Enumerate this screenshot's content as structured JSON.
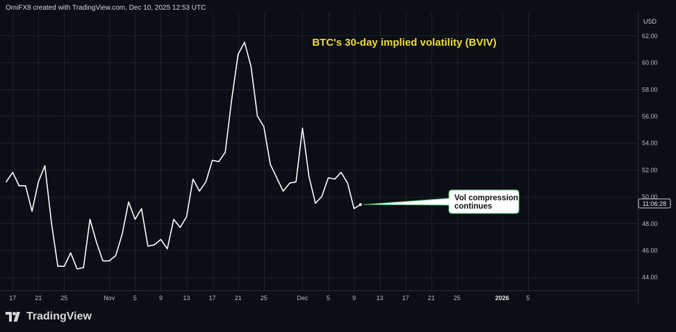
{
  "header": {
    "attribution": "OmiFX8 created with TradingView.com, Dec 10, 2025 12:53 UTC"
  },
  "footer": {
    "brand": "TradingView"
  },
  "colors": {
    "background": "#0b0e14",
    "line": "#ffffff",
    "title": "#f0d93a",
    "grid": "#1b2230",
    "axis_text": "#b8bcc4"
  },
  "chart_data": {
    "type": "line",
    "title": "BTC's 30-day implied volatility (BVIV)",
    "currency_label": "USD",
    "countdown_label": "11:06:28",
    "ylim": [
      43,
      63
    ],
    "yticks": [
      44,
      46,
      48,
      50,
      52,
      54,
      56,
      58,
      60,
      62
    ],
    "ytick_labels": [
      "44.00",
      "46.00",
      "48.00",
      "50.00",
      "52.00",
      "54.00",
      "56.00",
      "58.00",
      "60.00",
      "62.00"
    ],
    "xlim": [
      "2025-10-16",
      "2026-01-08"
    ],
    "xticks": [
      {
        "date": "2025-10-17",
        "label": "17"
      },
      {
        "date": "2025-10-21",
        "label": "21"
      },
      {
        "date": "2025-10-25",
        "label": "25"
      },
      {
        "date": "2025-11-01",
        "label": "Nov"
      },
      {
        "date": "2025-11-05",
        "label": "5"
      },
      {
        "date": "2025-11-09",
        "label": "9"
      },
      {
        "date": "2025-11-13",
        "label": "13"
      },
      {
        "date": "2025-11-17",
        "label": "17"
      },
      {
        "date": "2025-11-21",
        "label": "21"
      },
      {
        "date": "2025-11-25",
        "label": "25"
      },
      {
        "date": "2025-12-01",
        "label": "Dec"
      },
      {
        "date": "2025-12-05",
        "label": "5"
      },
      {
        "date": "2025-12-09",
        "label": "9"
      },
      {
        "date": "2025-12-13",
        "label": "13"
      },
      {
        "date": "2025-12-17",
        "label": "17"
      },
      {
        "date": "2025-12-21",
        "label": "21"
      },
      {
        "date": "2025-12-25",
        "label": "25"
      },
      {
        "date": "2026-01-01",
        "label": "2026"
      },
      {
        "date": "2026-01-05",
        "label": "5"
      }
    ],
    "series": [
      {
        "points": [
          [
            "2025-10-16",
            51.1
          ],
          [
            "2025-10-17",
            51.8
          ],
          [
            "2025-10-18",
            50.8
          ],
          [
            "2025-10-19",
            50.8
          ],
          [
            "2025-10-20",
            48.9
          ],
          [
            "2025-10-21",
            51.1
          ],
          [
            "2025-10-22",
            52.3
          ],
          [
            "2025-10-23",
            48.1
          ],
          [
            "2025-10-24",
            44.8
          ],
          [
            "2025-10-25",
            44.8
          ],
          [
            "2025-10-26",
            45.8
          ],
          [
            "2025-10-27",
            44.6
          ],
          [
            "2025-10-28",
            44.7
          ],
          [
            "2025-10-29",
            48.3
          ],
          [
            "2025-10-30",
            46.6
          ],
          [
            "2025-10-31",
            45.2
          ],
          [
            "2025-11-01",
            45.2
          ],
          [
            "2025-11-02",
            45.6
          ],
          [
            "2025-11-03",
            47.2
          ],
          [
            "2025-11-04",
            49.6
          ],
          [
            "2025-11-05",
            48.3
          ],
          [
            "2025-11-06",
            49.1
          ],
          [
            "2025-11-07",
            46.3
          ],
          [
            "2025-11-08",
            46.4
          ],
          [
            "2025-11-09",
            46.8
          ],
          [
            "2025-11-10",
            46.1
          ],
          [
            "2025-11-11",
            48.3
          ],
          [
            "2025-11-12",
            47.7
          ],
          [
            "2025-11-13",
            48.5
          ],
          [
            "2025-11-14",
            51.3
          ],
          [
            "2025-11-15",
            50.4
          ],
          [
            "2025-11-16",
            51.1
          ],
          [
            "2025-11-17",
            52.7
          ],
          [
            "2025-11-18",
            52.6
          ],
          [
            "2025-11-19",
            53.3
          ],
          [
            "2025-11-20",
            57.2
          ],
          [
            "2025-11-21",
            60.6
          ],
          [
            "2025-11-22",
            61.5
          ],
          [
            "2025-11-23",
            59.7
          ],
          [
            "2025-11-24",
            56.0
          ],
          [
            "2025-11-25",
            55.2
          ],
          [
            "2025-11-26",
            52.4
          ],
          [
            "2025-11-27",
            51.4
          ],
          [
            "2025-11-28",
            50.4
          ],
          [
            "2025-11-29",
            51.0
          ],
          [
            "2025-11-30",
            51.1
          ],
          [
            "2025-12-01",
            55.1
          ],
          [
            "2025-12-02",
            51.5
          ],
          [
            "2025-12-03",
            49.5
          ],
          [
            "2025-12-04",
            50.0
          ],
          [
            "2025-12-05",
            51.4
          ],
          [
            "2025-12-06",
            51.3
          ],
          [
            "2025-12-07",
            51.8
          ],
          [
            "2025-12-08",
            51.0
          ],
          [
            "2025-12-09",
            49.1
          ],
          [
            "2025-12-10",
            49.4
          ]
        ]
      }
    ],
    "annotation": {
      "lines": [
        "Vol compression",
        "continues"
      ],
      "points_to": [
        "2025-12-10",
        49.4
      ]
    },
    "grid": true
  }
}
